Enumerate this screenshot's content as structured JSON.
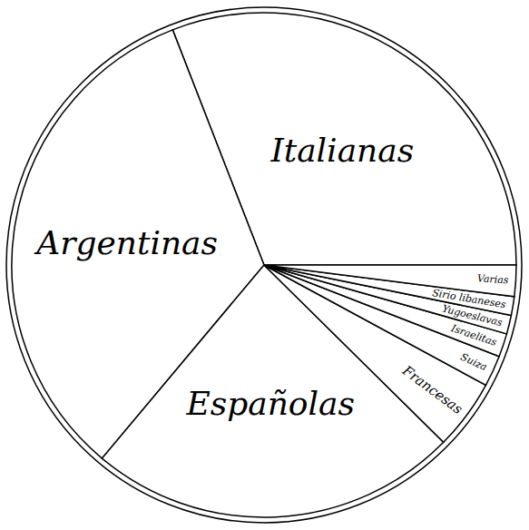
{
  "chart_data": {
    "type": "pie",
    "categories": [
      "Italianas",
      "Argentinas",
      "Españolas",
      "Francesas",
      "Suiza",
      "Israelitas",
      "Yugoeslavas",
      "Sirio libaneses",
      "Varias"
    ],
    "values": [
      30.9,
      33,
      23.7,
      4.5,
      2,
      1.5,
      1.2,
      1.2,
      2
    ],
    "color": "#ffffff"
  }
}
